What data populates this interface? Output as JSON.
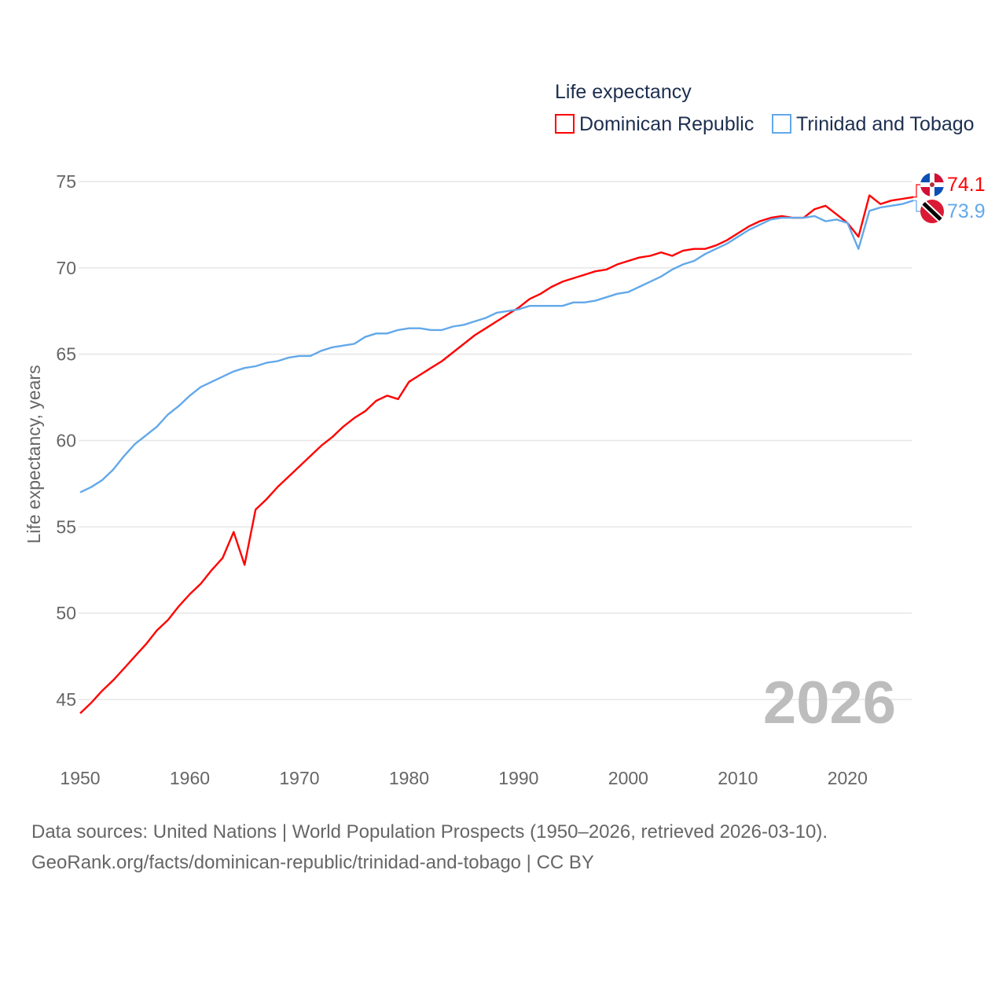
{
  "chart_data": {
    "type": "line",
    "title": "Life expectancy",
    "xlabel": "",
    "ylabel": "Life expectancy, years",
    "xlim": [
      1950,
      2026
    ],
    "ylim": [
      45,
      75
    ],
    "x_ticks": [
      1950,
      1960,
      1970,
      1980,
      1990,
      2000,
      2010,
      2020
    ],
    "y_ticks": [
      45,
      50,
      55,
      60,
      65,
      70,
      75
    ],
    "grid": true,
    "legend_placement": "top-right",
    "current_year_label": "2026",
    "x": [
      1950,
      1951,
      1952,
      1953,
      1954,
      1955,
      1956,
      1957,
      1958,
      1959,
      1960,
      1961,
      1962,
      1963,
      1964,
      1965,
      1966,
      1967,
      1968,
      1969,
      1970,
      1971,
      1972,
      1973,
      1974,
      1975,
      1976,
      1977,
      1978,
      1979,
      1980,
      1981,
      1982,
      1983,
      1984,
      1985,
      1986,
      1987,
      1988,
      1989,
      1990,
      1991,
      1992,
      1993,
      1994,
      1995,
      1996,
      1997,
      1998,
      1999,
      2000,
      2001,
      2002,
      2003,
      2004,
      2005,
      2006,
      2007,
      2008,
      2009,
      2010,
      2011,
      2012,
      2013,
      2014,
      2015,
      2016,
      2017,
      2018,
      2019,
      2020,
      2021,
      2022,
      2023,
      2024,
      2025,
      2026
    ],
    "series": [
      {
        "name": "Dominican Republic",
        "color": "#ff0000",
        "end_label": "74.1",
        "flag": "dominican-republic-flag",
        "values": [
          44.2,
          44.8,
          45.5,
          46.1,
          46.8,
          47.5,
          48.2,
          49.0,
          49.6,
          50.4,
          51.1,
          51.7,
          52.5,
          53.2,
          54.7,
          52.8,
          56.0,
          56.6,
          57.3,
          57.9,
          58.5,
          59.1,
          59.7,
          60.2,
          60.8,
          61.3,
          61.7,
          62.3,
          62.6,
          62.4,
          63.4,
          63.8,
          64.2,
          64.6,
          65.1,
          65.6,
          66.1,
          66.5,
          66.9,
          67.3,
          67.7,
          68.2,
          68.5,
          68.9,
          69.2,
          69.4,
          69.6,
          69.8,
          69.9,
          70.2,
          70.4,
          70.6,
          70.7,
          70.9,
          70.7,
          71.0,
          71.1,
          71.1,
          71.3,
          71.6,
          72.0,
          72.4,
          72.7,
          72.9,
          73.0,
          72.9,
          72.9,
          73.4,
          73.6,
          73.1,
          72.6,
          71.8,
          74.2,
          73.7,
          73.9,
          74.0,
          74.1
        ]
      },
      {
        "name": "Trinidad and Tobago",
        "color": "#62a8ea",
        "end_label": "73.9",
        "flag": "trinidad-and-tobago-flag",
        "values": [
          57.0,
          57.3,
          57.7,
          58.3,
          59.1,
          59.8,
          60.3,
          60.8,
          61.5,
          62.0,
          62.6,
          63.1,
          63.4,
          63.7,
          64.0,
          64.2,
          64.3,
          64.5,
          64.6,
          64.8,
          64.9,
          64.9,
          65.2,
          65.4,
          65.5,
          65.6,
          66.0,
          66.2,
          66.2,
          66.4,
          66.5,
          66.5,
          66.4,
          66.4,
          66.6,
          66.7,
          66.9,
          67.1,
          67.4,
          67.5,
          67.6,
          67.8,
          67.8,
          67.8,
          67.8,
          68.0,
          68.0,
          68.1,
          68.3,
          68.5,
          68.6,
          68.9,
          69.2,
          69.5,
          69.9,
          70.2,
          70.4,
          70.8,
          71.1,
          71.4,
          71.8,
          72.2,
          72.5,
          72.8,
          72.9,
          72.9,
          72.9,
          73.0,
          72.7,
          72.8,
          72.6,
          71.1,
          73.3,
          73.5,
          73.6,
          73.7,
          73.9
        ]
      }
    ]
  },
  "footer": {
    "line1": "Data sources: United Nations | World Population Prospects (1950–2026, retrieved 2026-03-10).",
    "line2": "GeoRank.org/facts/dominican-republic/trinidad-and-tobago | CC BY"
  }
}
